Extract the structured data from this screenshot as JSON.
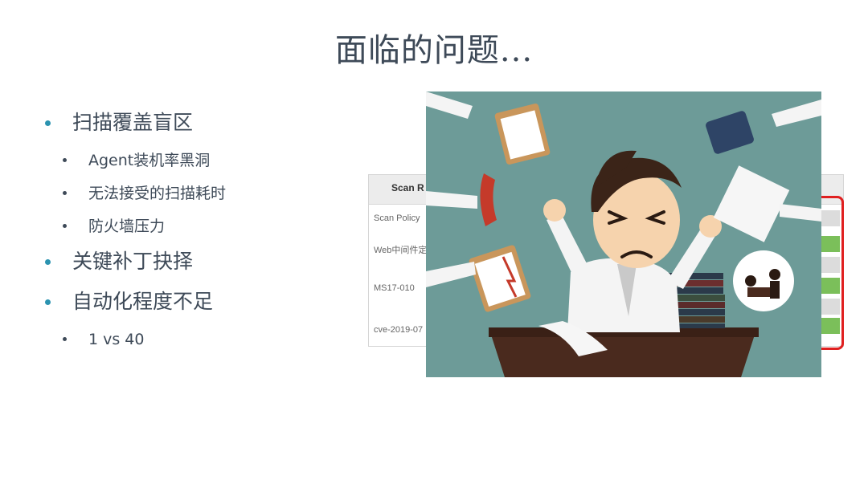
{
  "slide": {
    "title": "面临的问题...",
    "bullets": [
      {
        "text": "扫描覆盖盲区",
        "sub": [
          "Agent装机率黑洞",
          "无法接受的扫描耗时",
          "防火墙压力"
        ]
      },
      {
        "text": "关键补丁抉择",
        "sub": []
      },
      {
        "text": "自动化程度不足",
        "sub": [
          "1 vs 40"
        ]
      }
    ]
  },
  "scan_screenshot": {
    "header": "Scan R",
    "rows": [
      "Scan Policy",
      "Web中间件定",
      "MS17-010",
      "cve-2019-07"
    ]
  },
  "illustration": {
    "subject": "stressed office worker cartoon",
    "bg_color": "#6d9b98"
  }
}
